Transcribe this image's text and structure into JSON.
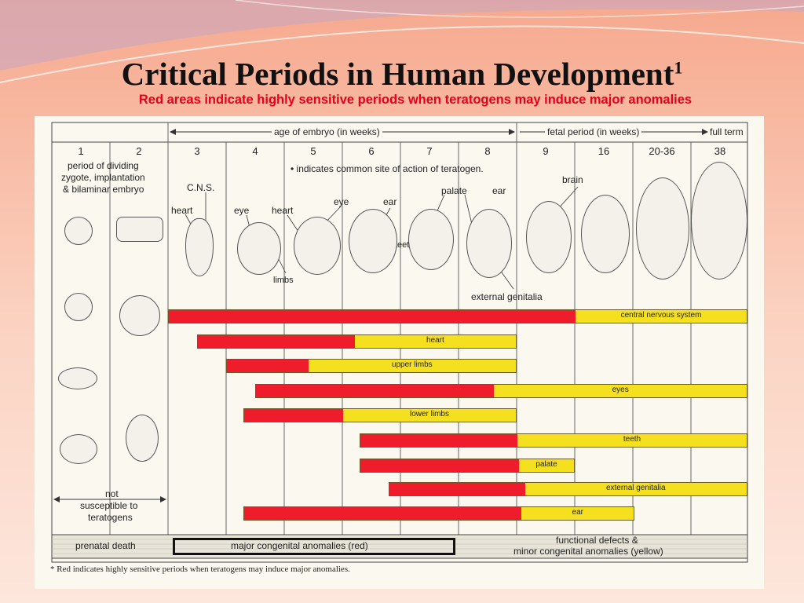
{
  "slide": {
    "title": "Critical Periods in Human Development",
    "title_superscript": "1",
    "subtitle": "Red areas indicate highly sensitive periods when teratogens may induce major anomalies"
  },
  "diagram": {
    "age_embryo_label": "age of embryo (in weeks)",
    "fetal_period_label": "fetal period (in weeks)",
    "full_term_label": "full term",
    "weeks": [
      "1",
      "2",
      "3",
      "4",
      "5",
      "6",
      "7",
      "8",
      "9",
      "16",
      "20-36",
      "38"
    ],
    "period_dividing": [
      "period of dividing",
      "zygote, implantation",
      "& bilaminar embryo"
    ],
    "indicates_note": "• indicates common site of action of teratogen.",
    "site_labels": {
      "cns": "C.N.S.",
      "heart3": "heart",
      "eye4": "eye",
      "heart4": "heart",
      "limbs": "limbs",
      "eye5": "eye",
      "ear6": "ear",
      "teeth": "teeth",
      "palate": "palate",
      "ear8": "ear",
      "brain": "brain",
      "external_genitalia": "external genitalia"
    },
    "not_susceptible": [
      "not",
      "susceptible to",
      "teratogens"
    ],
    "prenatal_death": "prenatal death",
    "major_anomalies": "major congenital anomalies (red)",
    "functional_defects": [
      "functional defects &",
      "minor congenital anomalies (yellow)"
    ],
    "footnote": "* Red indicates highly sensitive periods when teratogens may induce major anomalies.",
    "bars": [
      {
        "label": "central nervous system",
        "start": 3,
        "red_end": 16,
        "end": 38
      },
      {
        "label": "heart",
        "start": 3.5,
        "red_end": 6.2,
        "end": 9
      },
      {
        "label": "upper limbs",
        "start": 4,
        "red_end": 5.4,
        "end": 9
      },
      {
        "label": "eyes",
        "start": 4.5,
        "red_end": 8.6,
        "end": 38
      },
      {
        "label": "lower limbs",
        "start": 4.3,
        "red_end": 6,
        "end": 9
      },
      {
        "label": "teeth",
        "start": 6.3,
        "red_end": 9,
        "end": 38
      },
      {
        "label": "palate",
        "start": 6.3,
        "red_end": 9.2,
        "end": 16
      },
      {
        "label": "external genitalia",
        "start": 6.8,
        "red_end": 9.9,
        "end": 38
      },
      {
        "label": "ear",
        "start": 4.3,
        "red_end": 9.5,
        "end": 20.5
      }
    ]
  }
}
